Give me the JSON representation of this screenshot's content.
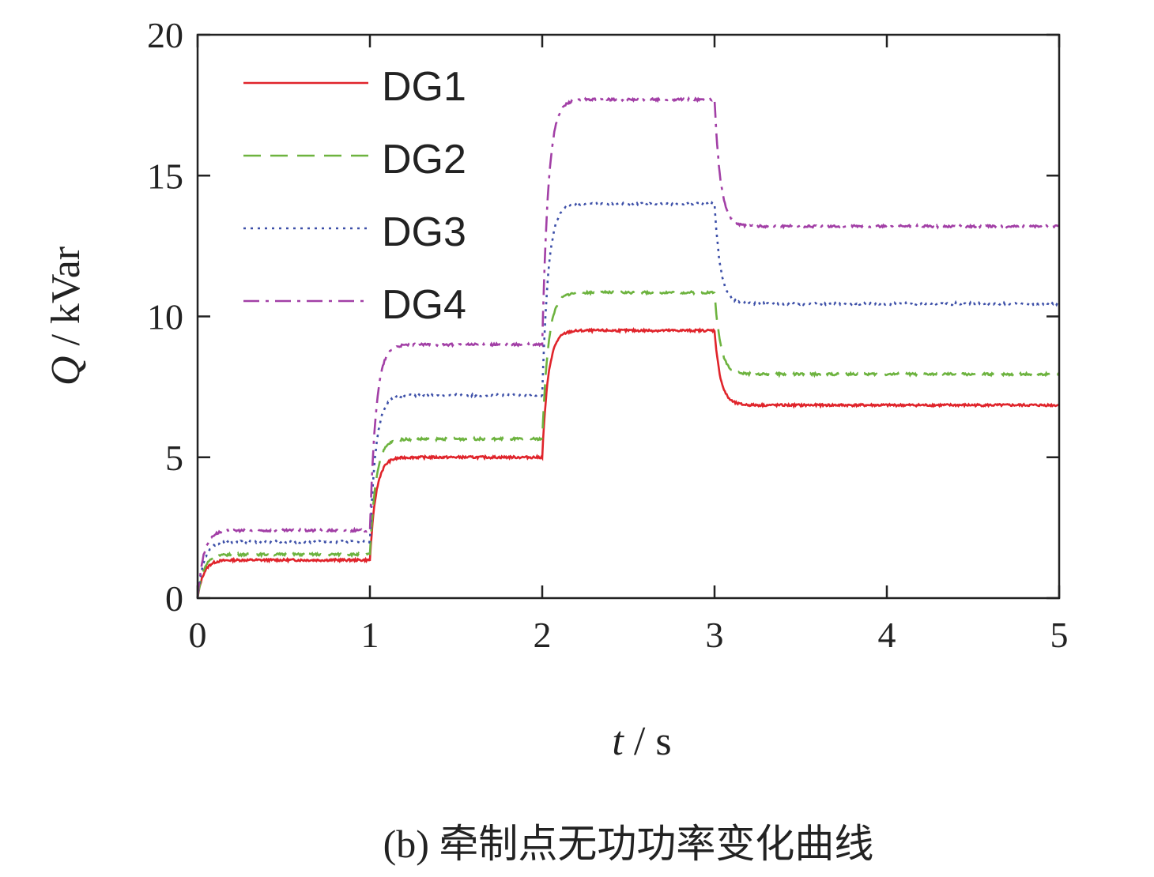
{
  "chart_data": {
    "type": "line",
    "title": "",
    "caption": "(b) 牵制点无功功率变化曲线",
    "xlabel_var": "t",
    "xlabel_unit": " / s",
    "ylabel_var": "Q",
    "ylabel_unit": " / kVar",
    "xlim": [
      0,
      5
    ],
    "ylim": [
      0,
      20
    ],
    "xticks": [
      "0",
      "1",
      "2",
      "3",
      "4",
      "5"
    ],
    "yticks": [
      "0",
      "5",
      "10",
      "15",
      "20"
    ],
    "legend_position": "top-left",
    "step_times": [
      0,
      1,
      2,
      3
    ],
    "series": [
      {
        "name": "DG1",
        "color": "#e0242b",
        "dash": "solid",
        "levels": [
          1.35,
          5.0,
          9.5,
          6.85
        ]
      },
      {
        "name": "DG2",
        "color": "#6db33f",
        "dash": "dashed",
        "levels": [
          1.55,
          5.65,
          10.85,
          7.95
        ]
      },
      {
        "name": "DG3",
        "color": "#3c4fa8",
        "dash": "dotted",
        "levels": [
          2.0,
          7.2,
          14.0,
          10.45
        ]
      },
      {
        "name": "DG4",
        "color": "#a23fa6",
        "dash": "dashdot",
        "levels": [
          2.4,
          9.0,
          17.7,
          13.2
        ]
      }
    ]
  }
}
